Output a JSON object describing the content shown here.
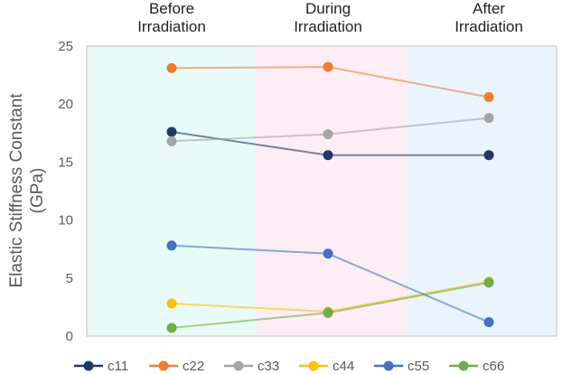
{
  "chart_data": {
    "type": "line",
    "categories": [
      "Before\nIrradiation",
      "During\nIrradiation",
      "After\nIrradiation"
    ],
    "ylabel": [
      "Elastic Stiffness Constant",
      "(GPa)"
    ],
    "ylim": [
      0,
      25
    ],
    "yticks": [
      0,
      5,
      10,
      15,
      20,
      25
    ],
    "grid": false,
    "legend_position": "bottom",
    "phase_band_colors": [
      "#e9fbf7",
      "#fdeef6",
      "#e9f4fc"
    ],
    "series": [
      {
        "name": "c11",
        "color": "#1f3864",
        "values": [
          17.6,
          15.6,
          15.6
        ]
      },
      {
        "name": "c22",
        "color": "#ed7d31",
        "values": [
          23.1,
          23.2,
          20.6
        ]
      },
      {
        "name": "c33",
        "color": "#a5a5a5",
        "values": [
          16.8,
          17.4,
          18.8
        ]
      },
      {
        "name": "c44",
        "color": "#ffc000",
        "values": [
          2.8,
          2.1,
          4.7
        ]
      },
      {
        "name": "c55",
        "color": "#4472c4",
        "values": [
          7.8,
          7.1,
          1.2
        ]
      },
      {
        "name": "c66",
        "color": "#70ad47",
        "values": [
          0.7,
          2.0,
          4.6
        ]
      }
    ]
  }
}
